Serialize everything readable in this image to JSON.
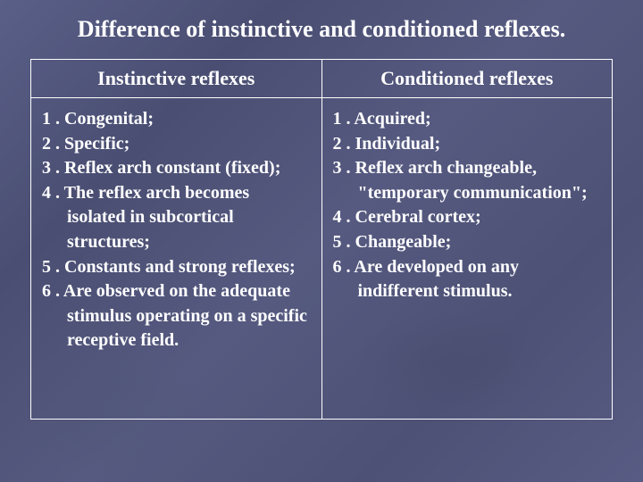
{
  "title": "Difference of instinctive and conditioned reflexes.",
  "columns": {
    "left": {
      "header": "Instinctive reflexes",
      "items": [
        "1 . Congenital;",
        "2 . Specific;",
        "3 . Reflex arch constant (fixed);",
        "4 . The reflex arch becomes isolated in subcortical structures;",
        "5 . Constants and strong reflexes;",
        "6 . Are observed on the adequate stimulus operating on a specific receptive field."
      ]
    },
    "right": {
      "header": "Conditioned reflexes",
      "items": [
        "1 . Acquired;",
        "2 . Individual;",
        "3 . Reflex arch changeable, \"temporary communication\";",
        "4 . Cerebral cortex;",
        "5 . Changeable;",
        "6 . Are developed on any indifferent stimulus."
      ]
    }
  },
  "styling": {
    "background_base": "#53577e",
    "text_color": "#ffffff",
    "border_color": "#ffffff",
    "title_fontsize": 26,
    "header_fontsize": 22,
    "body_fontsize": 20,
    "font_family": "Times New Roman"
  }
}
